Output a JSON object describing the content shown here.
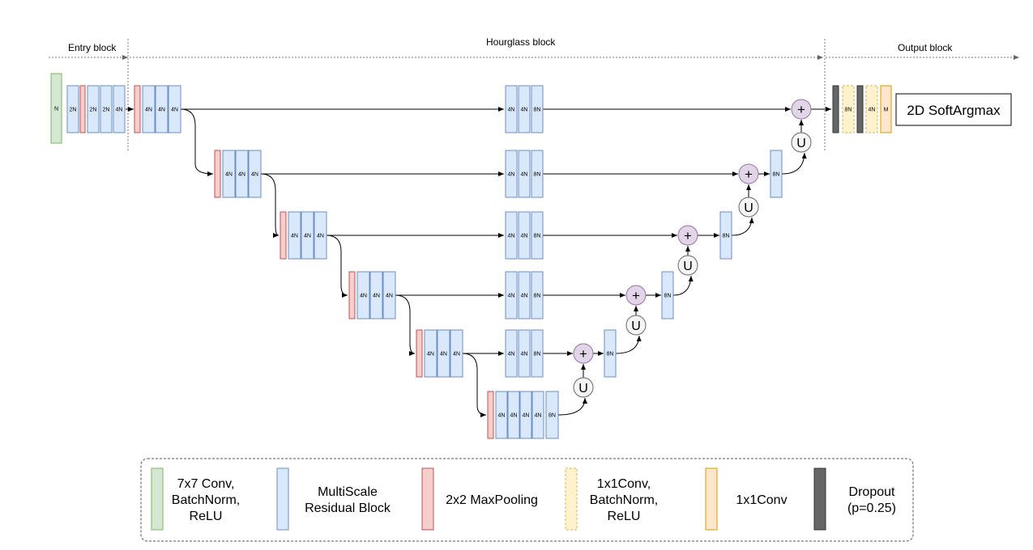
{
  "sections": {
    "entry": "Entry block",
    "hourglass": "Hourglass block",
    "output": "Output block"
  },
  "entry_blocks": [
    "N",
    "",
    "2N",
    "",
    "2N",
    "2N",
    "4N"
  ],
  "blocks": {
    "n4": "4N",
    "n8": "8N",
    "m": "M"
  },
  "symbols": {
    "add": "+",
    "upsample": "U"
  },
  "softargmax": "2D SoftArgmax",
  "legend": {
    "conv7": [
      "7x7 Conv,",
      "BatchNorm,",
      "ReLU"
    ],
    "msrb": [
      "MultiScale",
      "Residual Block"
    ],
    "pool": [
      "2x2 MaxPooling"
    ],
    "conv1_bn": [
      "1x1Conv,",
      "BatchNorm,",
      "ReLU"
    ],
    "conv1": [
      "1x1Conv"
    ],
    "dropout": [
      "Dropout",
      "(p=0.25)"
    ]
  },
  "colors": {
    "green_fill": "#d5e8d4",
    "green_stroke": "#82b366",
    "blue_fill": "#dae8fc",
    "blue_stroke": "#6c8ebf",
    "red_fill": "#f8cecc",
    "red_stroke": "#b85450",
    "yellow_fill": "#fff2cc",
    "yellow_stroke": "#d6b656",
    "orange_fill": "#ffe6cc",
    "orange_stroke": "#d79b00",
    "gray_fill": "#666666",
    "gray_stroke": "#333333",
    "purple_fill": "#e1d5e7",
    "purple_stroke": "#9673a6",
    "u_fill": "#f5f5f5",
    "u_stroke": "#666666"
  }
}
